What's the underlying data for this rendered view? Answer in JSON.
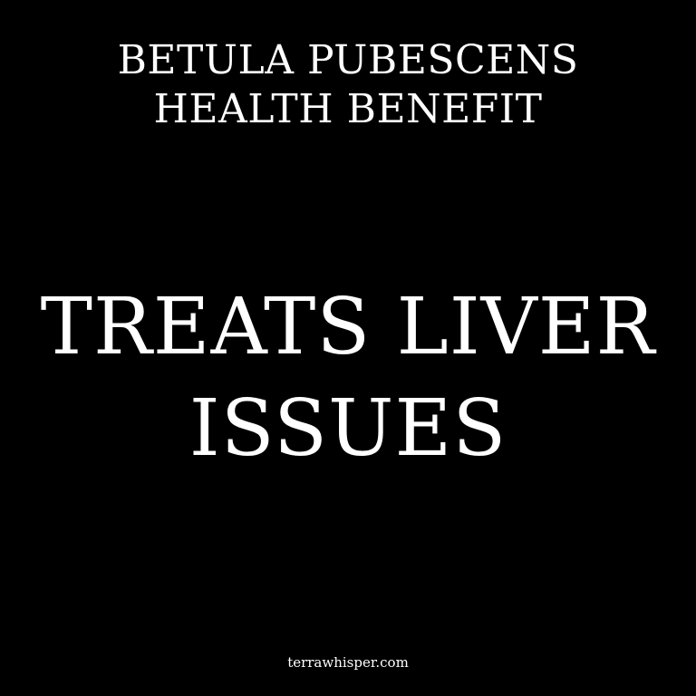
{
  "heading": {
    "line1": "BETULA PUBESCENS",
    "line2": "HEALTH BENEFIT"
  },
  "benefit": {
    "line1": "TREATS LIVER",
    "line2": "ISSUES"
  },
  "footer": {
    "site": "terrawhisper.com"
  },
  "colors": {
    "background": "#000000",
    "text": "#ffffff"
  }
}
